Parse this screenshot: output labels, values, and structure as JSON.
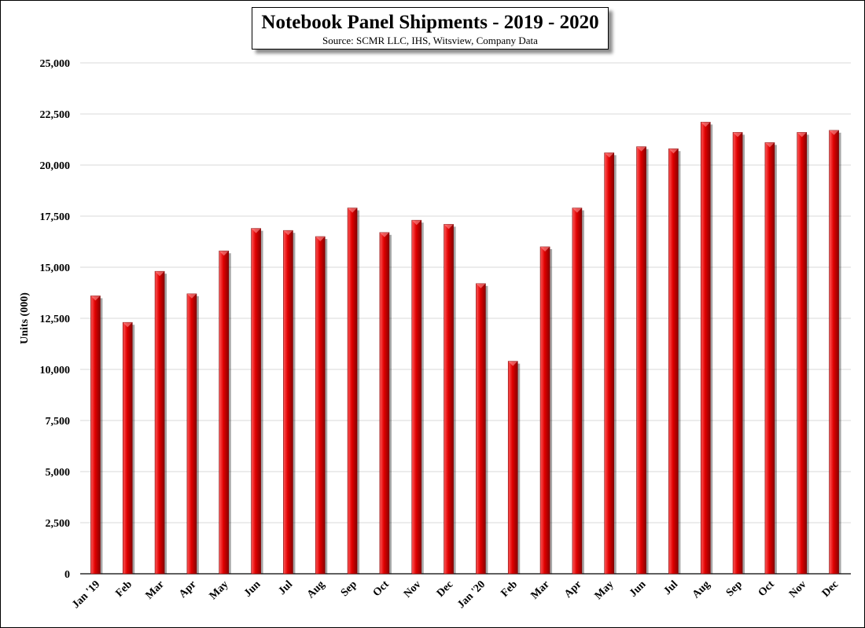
{
  "chart_data": {
    "type": "bar",
    "title": "Notebook Panel Shipments - 2019 - 2020",
    "subtitle": "Source: SCMR LLC, IHS, Witsview, Company Data",
    "xlabel": "",
    "ylabel": "Units (000)",
    "ylim": [
      0,
      25000
    ],
    "yticks": [
      0,
      2500,
      5000,
      7500,
      10000,
      12500,
      15000,
      17500,
      20000,
      22500,
      25000
    ],
    "grid": true,
    "legend": "none",
    "bar_color": "#e00000",
    "categories": [
      "Jan '19",
      "Feb",
      "Mar",
      "Apr",
      "May",
      "Jun",
      "Jul",
      "Aug",
      "Sep",
      "Oct",
      "Nov",
      "Dec",
      "Jan '20",
      "Feb",
      "Mar",
      "Apr",
      "May",
      "Jun",
      "Jul",
      "Aug",
      "Sep",
      "Oct",
      "Nov",
      "Dec"
    ],
    "values": [
      13600,
      12300,
      14800,
      13700,
      15800,
      16900,
      16800,
      16500,
      17900,
      16700,
      17300,
      17100,
      14200,
      10400,
      16000,
      17900,
      20600,
      20900,
      20800,
      22100,
      21600,
      21100,
      21600,
      21700
    ]
  }
}
